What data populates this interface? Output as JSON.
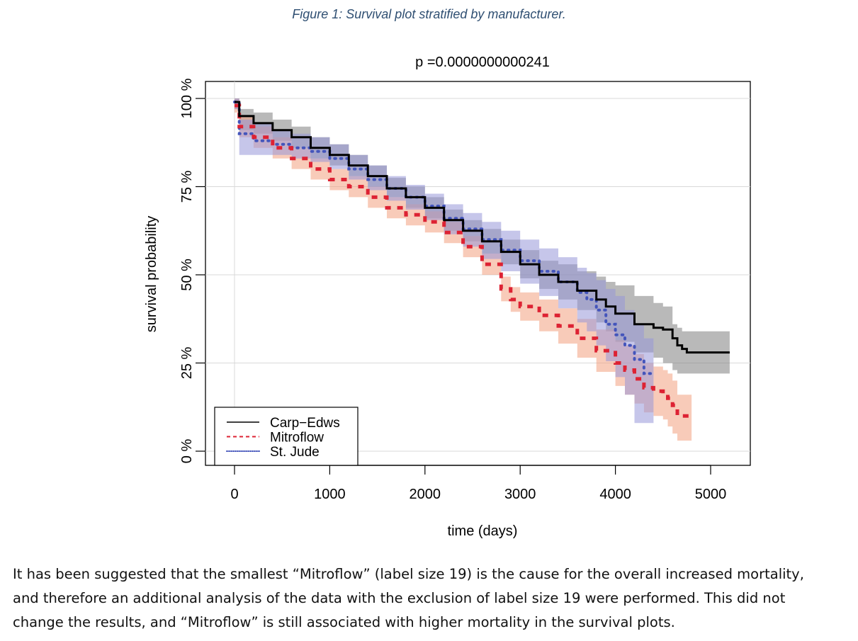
{
  "figure_caption": "Figure 1: Survival plot stratified by manufacturer.",
  "body_text": [
    "It has been suggested that the smallest “Mitroflow” (label size 19) is the cause for the overall increased mortality,",
    "and therefore an additional analysis of the data with the exclusion of label size 19 were performed. This did not",
    "change the results, and “Mitroflow” is still associated with higher mortality in the survival plots."
  ],
  "chart_data": {
    "type": "line",
    "title": "p =0.0000000000241",
    "xlabel": "time (days)",
    "ylabel": "survival probability",
    "xlim": [
      0,
      5200
    ],
    "ylim": [
      0,
      100
    ],
    "x_ticks": [
      "0",
      "1000",
      "2000",
      "3000",
      "4000",
      "5000"
    ],
    "x_tick_values": [
      0,
      1000,
      2000,
      3000,
      4000,
      5000
    ],
    "y_ticks": [
      "0 %",
      "25 %",
      "50 %",
      "75 %",
      "100 %"
    ],
    "y_tick_values": [
      0,
      25,
      50,
      75,
      100
    ],
    "grid": true,
    "legend_position": "bottom-left",
    "series": [
      {
        "name": "Carp−Edws",
        "color": "#000000",
        "band_color": "#808080",
        "line_style": "solid",
        "x": [
          0,
          50,
          200,
          400,
          600,
          800,
          1000,
          1200,
          1400,
          1600,
          1800,
          2000,
          2200,
          2400,
          2600,
          2800,
          3000,
          3200,
          3400,
          3600,
          3800,
          3900,
          4000,
          4200,
          4400,
          4500,
          4600,
          4650,
          4700,
          4750,
          5200
        ],
        "y": [
          99,
          95,
          93,
          91,
          89,
          86,
          84,
          81,
          78,
          74.5,
          72,
          69,
          65.5,
          62.5,
          59.5,
          56.5,
          53,
          50,
          48,
          45.5,
          43,
          41,
          39,
          36,
          35,
          34.5,
          32,
          30,
          29,
          28,
          28
        ],
        "lower": [
          97,
          91,
          90,
          88,
          86,
          83,
          81,
          78,
          75,
          72,
          69,
          66,
          62.5,
          59.5,
          56,
          53,
          49,
          46,
          43,
          40,
          36.5,
          34,
          31,
          28,
          26.5,
          25,
          23,
          22,
          22,
          22,
          22
        ],
        "upper": [
          100,
          97,
          96,
          94,
          92,
          89,
          87,
          84,
          81,
          77.5,
          75,
          72,
          68.5,
          65.5,
          63,
          60,
          57,
          54,
          53,
          51,
          49.5,
          48,
          47,
          44,
          42,
          41,
          36,
          35,
          34,
          34,
          34
        ]
      },
      {
        "name": "Mitroflow",
        "color": "#dd2233",
        "band_color": "#f2a080",
        "line_style": "dashed",
        "x": [
          0,
          50,
          200,
          400,
          600,
          800,
          1000,
          1200,
          1400,
          1600,
          1800,
          2000,
          2200,
          2400,
          2600,
          2800,
          2900,
          3000,
          3200,
          3400,
          3600,
          3800,
          4000,
          4100,
          4200,
          4300,
          4400,
          4500,
          4550,
          4600,
          4650,
          4800
        ],
        "y": [
          98,
          92,
          89,
          86,
          83,
          80,
          77,
          75,
          72,
          69,
          67,
          65,
          62,
          58,
          53,
          46,
          43,
          41,
          38.5,
          35.5,
          32,
          28.5,
          25,
          23,
          20.5,
          18,
          17,
          16,
          15,
          13,
          10,
          10
        ],
        "lower": [
          96,
          89,
          86,
          83,
          80,
          77,
          74,
          72,
          69,
          66,
          64,
          62,
          59,
          55,
          50,
          42.5,
          39.5,
          37,
          34,
          30.5,
          26.5,
          22.5,
          18.5,
          16,
          13.5,
          11,
          10,
          9,
          7,
          5,
          3,
          3
        ],
        "upper": [
          100,
          95,
          92,
          89,
          86,
          83,
          80,
          78,
          75,
          72,
          70,
          68,
          65,
          61,
          56,
          49.5,
          46.5,
          45,
          43,
          40.5,
          37.5,
          34.5,
          31.5,
          30,
          27.5,
          25,
          24,
          23,
          22,
          20,
          16,
          16
        ]
      },
      {
        "name": "St. Jude",
        "color": "#4455bb",
        "band_color": "#9898d8",
        "line_style": "dotted",
        "x": [
          0,
          50,
          200,
          400,
          600,
          800,
          1000,
          1200,
          1400,
          1600,
          1800,
          2000,
          2200,
          2400,
          2600,
          2800,
          3000,
          3200,
          3400,
          3600,
          3700,
          3800,
          3900,
          4000,
          4100,
          4200,
          4300,
          4400
        ],
        "y": [
          99,
          90,
          88,
          87,
          86,
          85,
          83,
          80,
          77,
          74.5,
          72,
          69.5,
          66,
          63,
          60,
          57,
          54,
          51,
          48,
          45,
          43,
          40,
          36,
          33,
          30,
          26,
          22,
          22
        ],
        "lower": [
          97,
          84,
          84,
          84,
          83,
          82,
          80,
          77,
          74,
          71,
          68.5,
          65.5,
          61.5,
          58,
          54.5,
          51,
          47.5,
          44,
          40.5,
          36.5,
          34,
          30,
          25.5,
          21,
          16,
          8,
          8,
          8
        ],
        "upper": [
          100,
          94,
          93,
          91,
          90,
          89,
          87,
          84,
          81,
          78,
          75.5,
          73,
          70,
          67.5,
          65,
          62.5,
          60,
          57.5,
          55,
          52,
          50.5,
          48.5,
          46,
          44,
          40,
          36,
          32,
          32
        ]
      }
    ]
  }
}
